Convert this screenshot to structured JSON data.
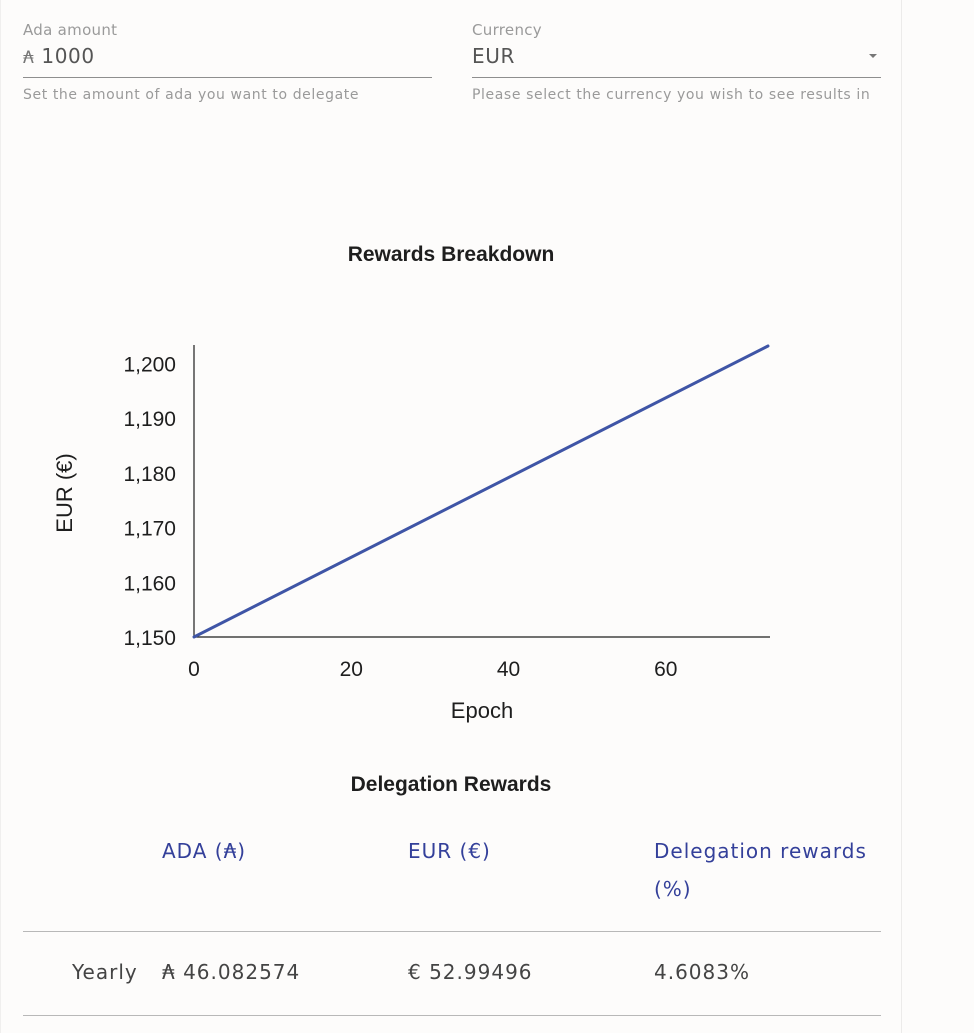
{
  "form": {
    "ada_amount": {
      "label": "Ada amount",
      "symbol": "₳",
      "value": "1000",
      "help": "Set the amount of ada you want to delegate"
    },
    "currency": {
      "label": "Currency",
      "value": "EUR",
      "help": "Please select the currency you wish to see results in",
      "icons": {
        "dropdown": "caret-down-icon"
      }
    }
  },
  "chart_section": {
    "title": "Rewards Breakdown"
  },
  "chart_data": {
    "type": "line",
    "title": "",
    "xlabel": "Epoch",
    "ylabel": "EUR (€)",
    "x_ticks": [
      "0",
      "20",
      "40",
      "60"
    ],
    "y_ticks": [
      "1,150",
      "1,160",
      "1,170",
      "1,180",
      "1,190",
      "1,200"
    ],
    "xlim": [
      0,
      73
    ],
    "ylim": [
      1150,
      1203.2
    ],
    "grid": false,
    "series": [
      {
        "color": "#3f55a6",
        "x": [
          0,
          73
        ],
        "y": [
          1150,
          1203.2
        ]
      }
    ]
  },
  "rewards_table": {
    "title": "Delegation Rewards",
    "headers": [
      "ADA (₳)",
      "EUR (€)",
      "Delegation rewards (%)"
    ],
    "rows": [
      {
        "period": "Yearly",
        "ada": "₳ 46.082574",
        "eur": "€ 52.99496",
        "percent": "4.6083%"
      }
    ]
  },
  "colors": {
    "accent": "#34409a",
    "line": "#3f55a6",
    "background": "#fdfcfb"
  }
}
